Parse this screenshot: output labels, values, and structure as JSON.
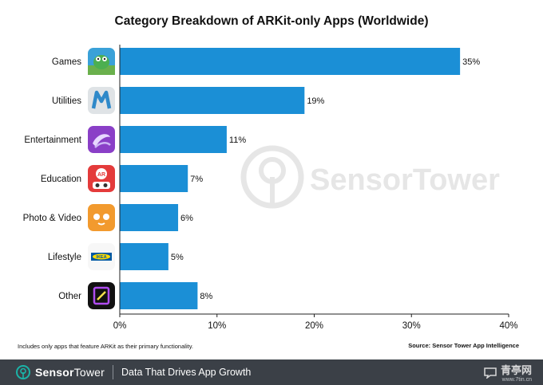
{
  "page": {
    "title": "Category Breakdown of ARKit-only Apps (Worldwide)",
    "footnote": "Includes only apps that feature ARKit as their primary functionality.",
    "source": "Source: Sensor Tower App Intelligence"
  },
  "watermark": {
    "brand": "SensorTower"
  },
  "footer": {
    "brand_bold": "Sensor",
    "brand_light": "Tower",
    "tagline": "Data That Drives App Growth",
    "corner_mark": "青亭网",
    "corner_sub": "www.7tin.cn"
  },
  "colors": {
    "bar": "#1b8fd6",
    "footer": "#3b4047",
    "watermark": "#e6e6e6",
    "accent": "#1bb3a8"
  },
  "chart_data": {
    "type": "bar",
    "orientation": "horizontal",
    "title": "Category Breakdown of ARKit-only Apps (Worldwide)",
    "categories": [
      "Games",
      "Utilities",
      "Entertainment",
      "Education",
      "Photo & Video",
      "Lifestyle",
      "Other"
    ],
    "values": [
      35,
      19,
      11,
      7,
      6,
      5,
      8
    ],
    "value_labels": [
      "35%",
      "19%",
      "11%",
      "7%",
      "6%",
      "5%",
      "8%"
    ],
    "xlim": [
      0,
      40
    ],
    "xticks": [
      0,
      10,
      20,
      30,
      40
    ],
    "xtick_labels": [
      "0%",
      "10%",
      "20%",
      "30%",
      "40%"
    ],
    "xlabel": "",
    "ylabel": "",
    "grid": false,
    "category_icons": [
      "game-dino-icon",
      "utility-m-icon",
      "entertainment-swirl-icon",
      "education-ar-icon",
      "photo-video-face-icon",
      "lifestyle-ikea-icon",
      "other-frame-icon"
    ]
  }
}
